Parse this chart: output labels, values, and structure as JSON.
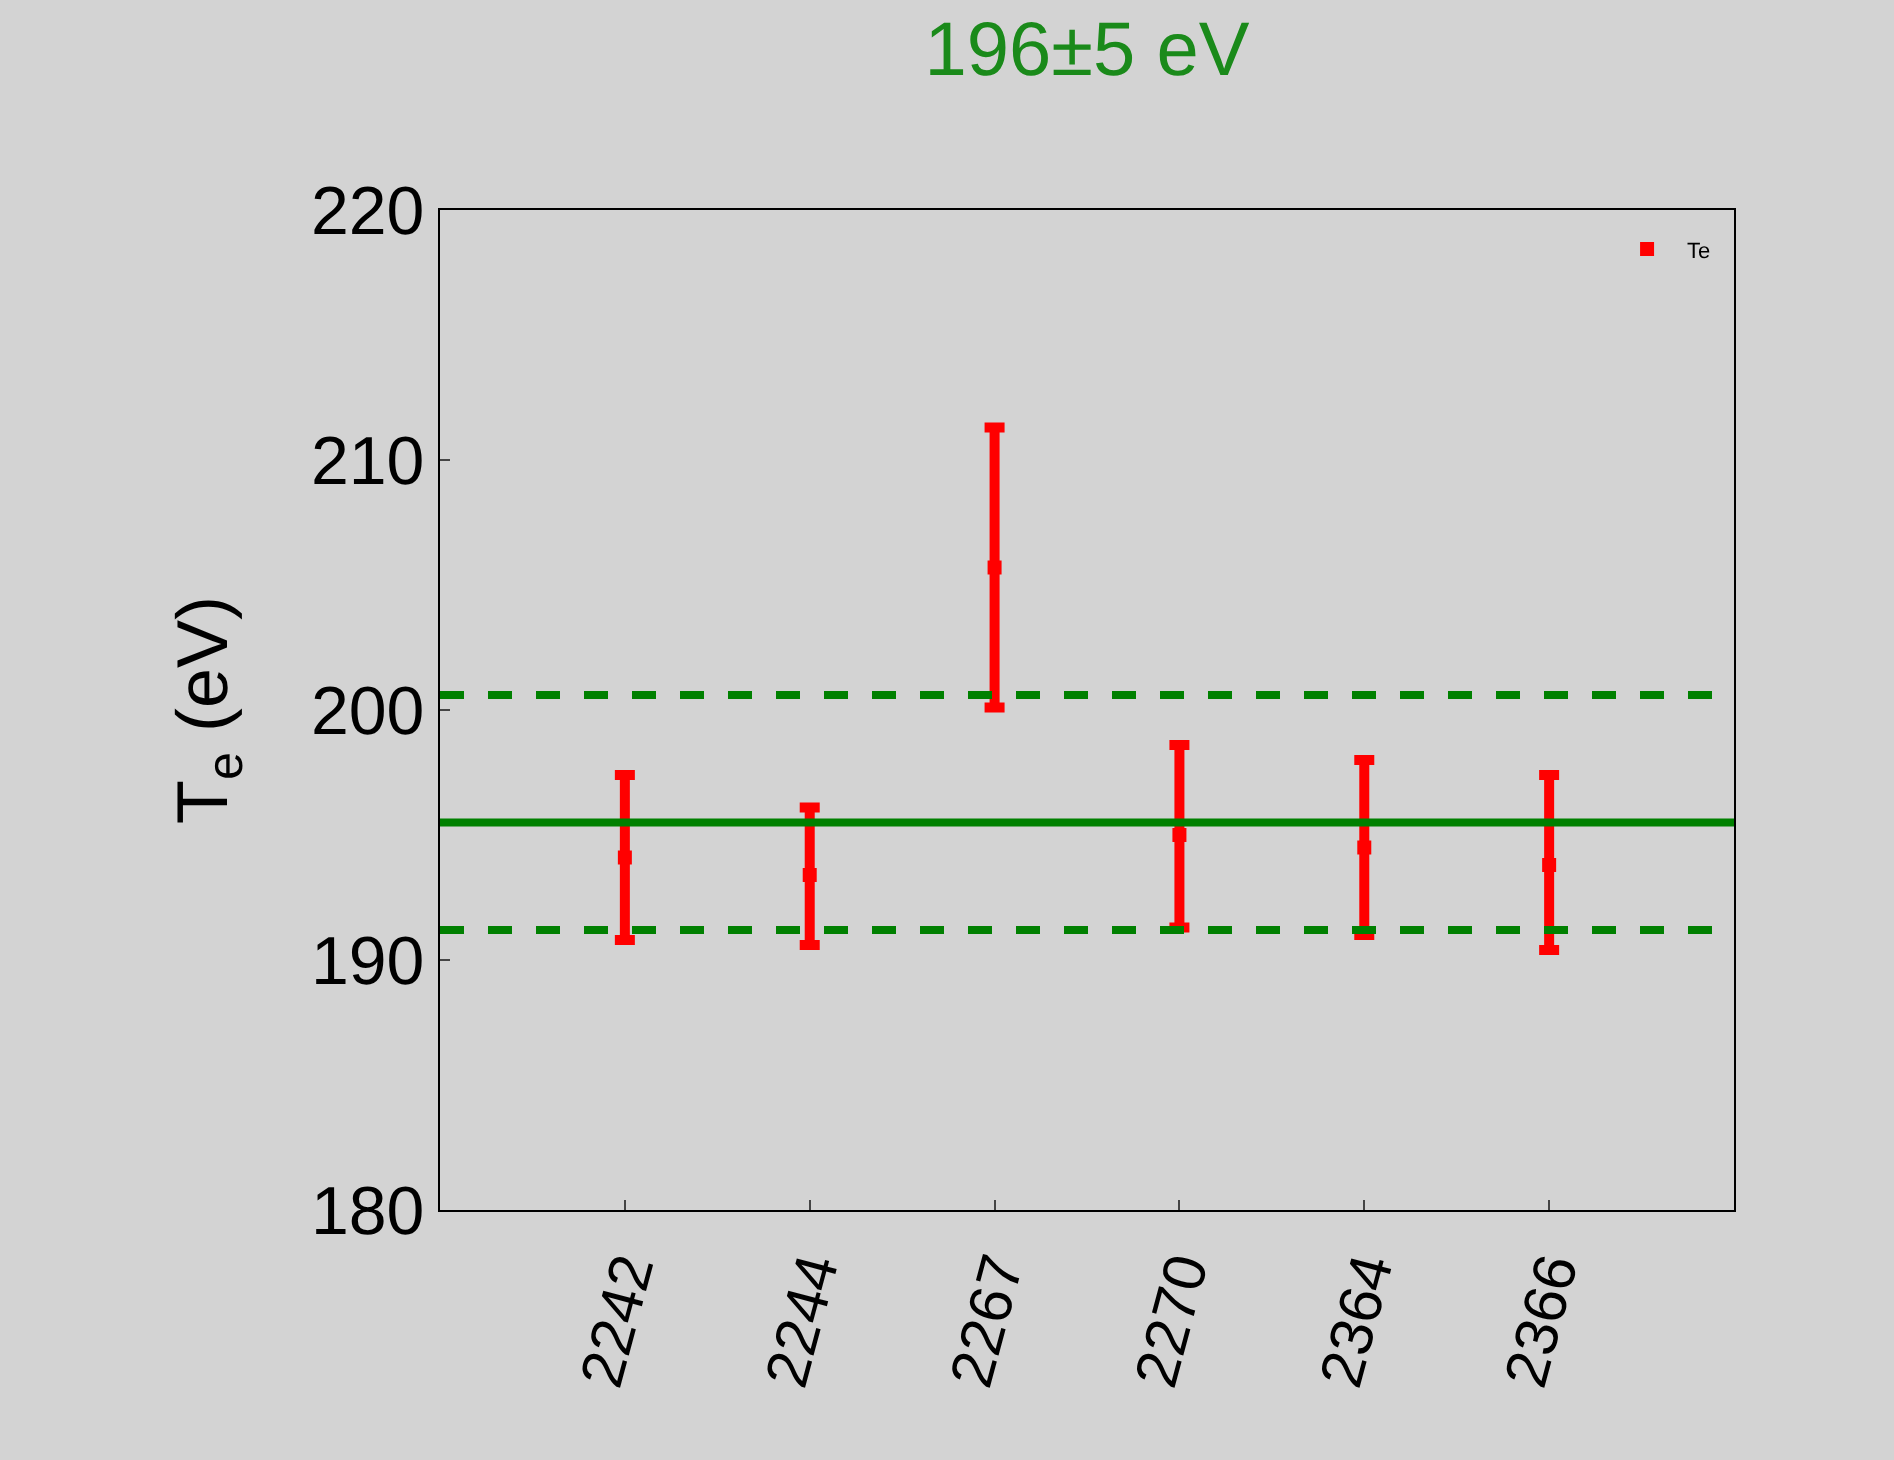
{
  "chart_data": {
    "type": "scatter",
    "title": "196±5 eV",
    "ylabel": "T$_{e}$ (eV)",
    "categories": [
      "2242",
      "2244",
      "2267",
      "2270",
      "2364",
      "2366"
    ],
    "series": [
      {
        "name": "Te",
        "color": "#ff0000",
        "values": [
          194.1,
          193.4,
          205.7,
          195.0,
          194.5,
          193.8
        ],
        "errors": [
          [
            190.8,
            197.4
          ],
          [
            190.6,
            196.1
          ],
          [
            200.1,
            211.3
          ],
          [
            191.3,
            198.6
          ],
          [
            191.0,
            198.0
          ],
          [
            190.4,
            197.4
          ]
        ]
      }
    ],
    "ylim": [
      180,
      220
    ],
    "yticks": [
      180,
      190,
      200,
      210,
      220
    ],
    "ref_lines": [
      {
        "axis": "y",
        "value": 195.5,
        "color": "#008000",
        "line_style": "solid"
      },
      {
        "axis": "y",
        "value": 200.6,
        "color": "#008000",
        "line_style": "dashed"
      },
      {
        "axis": "y",
        "value": 191.2,
        "color": "#008000",
        "line_style": "dashed"
      }
    ],
    "grid": false,
    "legend": "top right",
    "marker": "square"
  }
}
